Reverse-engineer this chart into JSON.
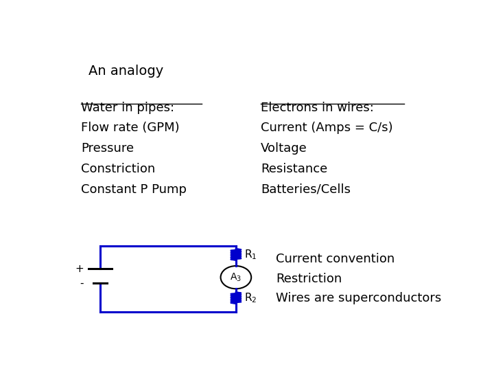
{
  "title": "An analogy",
  "left_header": "Water in pipes:",
  "left_items": [
    "Flow rate (GPM)",
    "Pressure",
    "Constriction",
    "Constant P Pump"
  ],
  "right_header": "Electrons in wires:",
  "right_items": [
    "Current (Amps = C/s)",
    "Voltage",
    "Resistance",
    "Batteries/Cells"
  ],
  "circuit_notes": [
    "Current convention",
    "Restriction",
    "Wires are superconductors"
  ],
  "circuit_color": "#0000cc",
  "text_color": "#000000",
  "bg_color": "#ffffff",
  "font_size": 13,
  "title_font_size": 14,
  "header_font_size": 13
}
